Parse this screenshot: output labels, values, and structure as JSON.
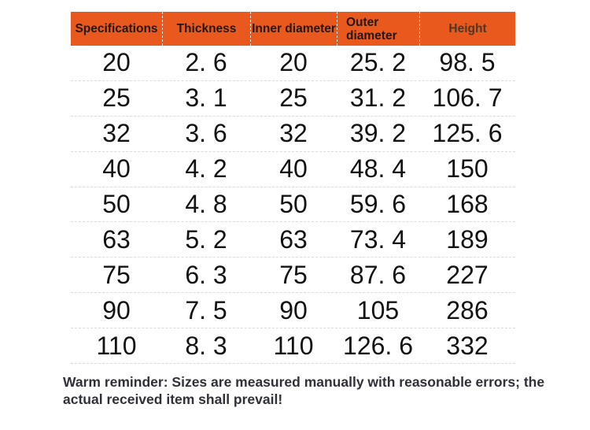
{
  "colors": {
    "header_bg": "#E9581C",
    "header_text": "#231812",
    "height_header_text": "#4a3828",
    "row_text": "#121212",
    "row_divider": "#dcdcdc",
    "header_divider": "rgba(255,255,255,0.85)",
    "note_text": "#30303a",
    "background": "#ffffff"
  },
  "table": {
    "headers": [
      "Specifications",
      "Thickness",
      "Inner diameter",
      "Outer diameter",
      "Height"
    ],
    "rows": [
      [
        "20",
        "2. 6",
        "20",
        "25. 2",
        "98. 5"
      ],
      [
        "25",
        "3. 1",
        "25",
        "31. 2",
        "106. 7"
      ],
      [
        "32",
        "3. 6",
        "32",
        "39. 2",
        "125. 6"
      ],
      [
        "40",
        "4. 2",
        "40",
        "48. 4",
        "150"
      ],
      [
        "50",
        "4. 8",
        "50",
        "59. 6",
        "168"
      ],
      [
        "63",
        "5. 2",
        "63",
        "73. 4",
        "189"
      ],
      [
        "75",
        "6. 3",
        "75",
        "87. 6",
        "227"
      ],
      [
        "90",
        "7. 5",
        "90",
        "105",
        "286"
      ],
      [
        "110",
        "8. 3",
        "110",
        "126. 6",
        "332"
      ]
    ]
  },
  "note": "Warm reminder: Sizes are measured manually with reasonable errors; the actual received item shall prevail!"
}
